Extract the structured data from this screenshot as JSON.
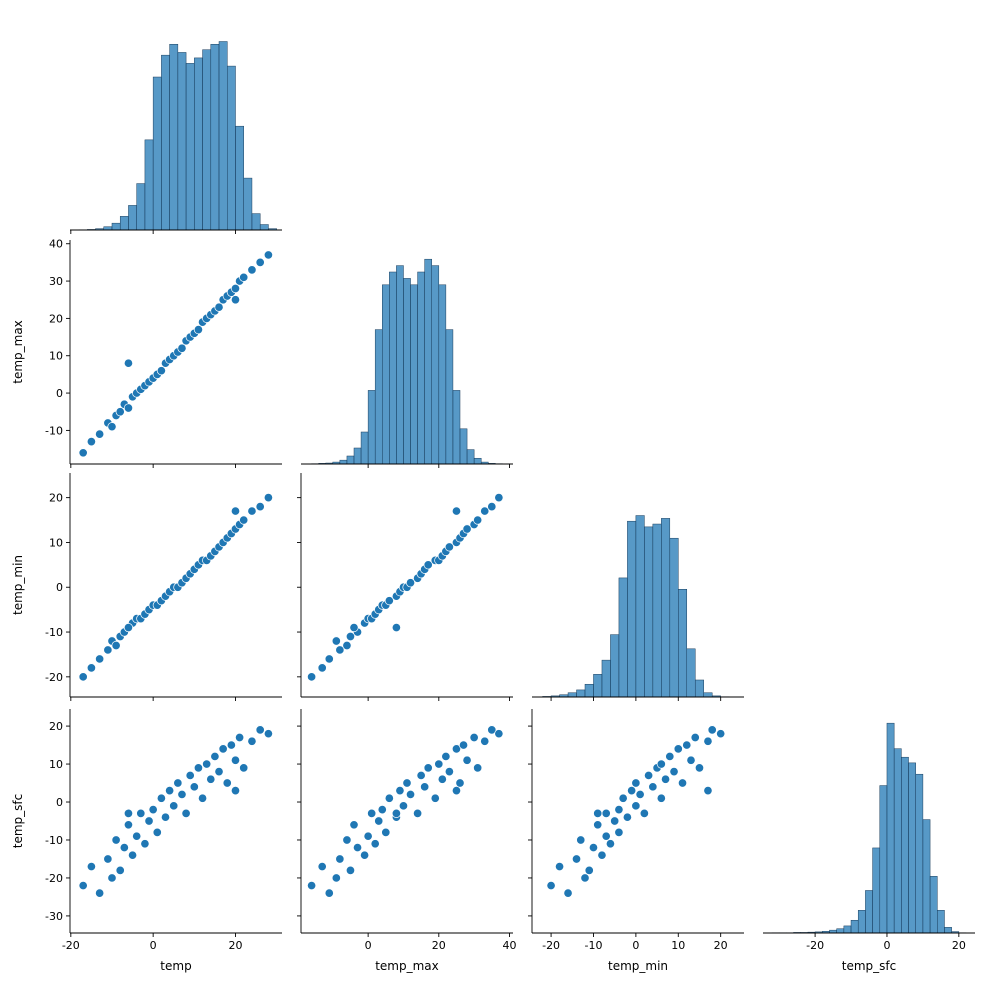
{
  "chart_data": [
    {
      "type": "histogram",
      "color": "#1f77b4",
      "bins": [
        -18,
        -16,
        -14,
        -12,
        -10,
        -8,
        -6,
        -4,
        -2,
        0,
        2,
        4,
        6,
        8,
        10,
        12,
        14,
        16,
        18,
        20,
        22,
        24,
        26,
        28,
        30
      ],
      "counts": [
        1,
        2,
        5,
        12,
        25,
        50,
        90,
        170,
        330,
        560,
        640,
        680,
        650,
        610,
        630,
        660,
        680,
        690,
        600,
        380,
        190,
        60,
        20,
        5
      ],
      "xlim": [
        -20.2,
        31.3
      ],
      "ylim": [
        0,
        820
      ],
      "xticks": [
        -20,
        0,
        20
      ]
    },
    {
      "type": "scatter",
      "color": "#1f77b4",
      "ylabel": "temp_max",
      "x": [
        -17,
        -15,
        -13,
        -11,
        -10,
        -9,
        -8,
        -7,
        -6,
        -5,
        -4,
        -3,
        -2,
        -1,
        0,
        1,
        2,
        3,
        4,
        5,
        6,
        7,
        8,
        9,
        10,
        11,
        12,
        13,
        14,
        15,
        16,
        17,
        18,
        19,
        20,
        21,
        22,
        24,
        26,
        28,
        -6,
        20
      ],
      "y": [
        -16,
        -13,
        -11,
        -8,
        -9,
        -6,
        -5,
        -3,
        -4,
        -1,
        0,
        1,
        2,
        3,
        4,
        5,
        6,
        8,
        9,
        10,
        11,
        12,
        14,
        15,
        16,
        17,
        19,
        20,
        21,
        22,
        23,
        25,
        26,
        27,
        28,
        30,
        31,
        33,
        35,
        37,
        8,
        25
      ],
      "xlim": [
        -20.2,
        31.3
      ],
      "ylim": [
        -19,
        41
      ],
      "xticks": [
        -20,
        0,
        20
      ],
      "yticks": [
        -10,
        0,
        10,
        20,
        30,
        40
      ]
    },
    {
      "type": "histogram",
      "color": "#1f77b4",
      "bins": [
        -16,
        -14,
        -12,
        -10,
        -8,
        -6,
        -4,
        -2,
        0,
        2,
        4,
        6,
        8,
        10,
        12,
        14,
        16,
        18,
        20,
        22,
        24,
        26,
        28,
        30,
        32,
        34,
        36,
        38
      ],
      "counts": [
        1,
        2,
        3,
        6,
        12,
        25,
        50,
        100,
        230,
        420,
        560,
        600,
        620,
        580,
        560,
        600,
        640,
        620,
        560,
        420,
        230,
        110,
        45,
        18,
        6,
        2,
        1
      ],
      "xlim": [
        -19,
        41
      ],
      "ylim": [
        0,
        700
      ],
      "xticks": [
        0,
        20,
        40
      ]
    },
    {
      "type": "scatter",
      "color": "#1f77b4",
      "ylabel": "temp_min",
      "x": [
        -17,
        -15,
        -13,
        -11,
        -10,
        -9,
        -8,
        -7,
        -6,
        -5,
        -4,
        -3,
        -2,
        -1,
        0,
        1,
        2,
        3,
        4,
        5,
        6,
        7,
        8,
        9,
        10,
        11,
        12,
        13,
        14,
        15,
        16,
        17,
        18,
        19,
        20,
        21,
        22,
        24,
        26,
        28,
        -6,
        20
      ],
      "y": [
        -20,
        -18,
        -16,
        -14,
        -12,
        -13,
        -11,
        -10,
        -9,
        -8,
        -7,
        -7,
        -6,
        -5,
        -4,
        -4,
        -3,
        -2,
        -1,
        0,
        0,
        1,
        2,
        3,
        4,
        5,
        6,
        6,
        7,
        8,
        9,
        10,
        11,
        12,
        13,
        14,
        15,
        17,
        18,
        20,
        -9,
        17
      ],
      "xlim": [
        -20.2,
        31.3
      ],
      "ylim": [
        -24.5,
        25.5
      ],
      "xticks": [
        -20,
        0,
        20
      ],
      "yticks": [
        -20,
        -10,
        0,
        10,
        20
      ]
    },
    {
      "type": "scatter",
      "color": "#1f77b4",
      "x": [
        -16,
        -13,
        -11,
        -8,
        -9,
        -6,
        -5,
        -3,
        -4,
        -1,
        0,
        1,
        2,
        3,
        4,
        5,
        6,
        8,
        9,
        10,
        11,
        12,
        14,
        15,
        16,
        17,
        19,
        20,
        21,
        22,
        23,
        25,
        26,
        27,
        28,
        30,
        31,
        33,
        35,
        37,
        8,
        25
      ],
      "y": [
        -20,
        -18,
        -16,
        -14,
        -12,
        -13,
        -11,
        -10,
        -9,
        -8,
        -7,
        -7,
        -6,
        -5,
        -4,
        -4,
        -3,
        -2,
        -1,
        0,
        0,
        1,
        2,
        3,
        4,
        5,
        6,
        6,
        7,
        8,
        9,
        10,
        11,
        12,
        13,
        14,
        15,
        17,
        18,
        20,
        -9,
        17
      ],
      "xlim": [
        -19,
        41
      ],
      "ylim": [
        -24.5,
        25.5
      ],
      "xticks": [
        0,
        20,
        40
      ],
      "yticks": [
        -20,
        -10,
        0,
        10,
        20
      ]
    },
    {
      "type": "histogram",
      "color": "#1f77b4",
      "bins": [
        -22,
        -20,
        -18,
        -16,
        -14,
        -12,
        -10,
        -8,
        -6,
        -4,
        -2,
        0,
        2,
        4,
        6,
        8,
        10,
        12,
        14,
        16,
        18,
        20,
        22
      ],
      "counts": [
        2,
        4,
        8,
        15,
        25,
        45,
        80,
        130,
        220,
        420,
        620,
        640,
        600,
        610,
        630,
        560,
        380,
        170,
        60,
        15,
        4,
        1
      ],
      "xlim": [
        -24.5,
        25.5
      ],
      "ylim": [
        0,
        790
      ],
      "xticks": [
        -20,
        -10,
        0,
        10,
        20
      ]
    },
    {
      "type": "scatter",
      "color": "#1f77b4",
      "xlabel": "temp",
      "ylabel": "temp_sfc",
      "x": [
        -17,
        -15,
        -13,
        -11,
        -10,
        -9,
        -8,
        -7,
        -6,
        -5,
        -4,
        -3,
        -2,
        -1,
        0,
        1,
        2,
        3,
        4,
        5,
        6,
        7,
        8,
        9,
        10,
        11,
        12,
        13,
        14,
        15,
        16,
        17,
        18,
        19,
        20,
        21,
        22,
        24,
        26,
        28,
        -6,
        20
      ],
      "y": [
        -22,
        -17,
        -24,
        -15,
        -20,
        -10,
        -18,
        -12,
        -6,
        -14,
        -9,
        -3,
        -11,
        -5,
        -2,
        -8,
        1,
        -4,
        3,
        -1,
        5,
        2,
        -3,
        7,
        4,
        9,
        1,
        10,
        6,
        12,
        8,
        14,
        5,
        15,
        11,
        17,
        9,
        16,
        19,
        18,
        -3,
        3
      ],
      "xlim": [
        -20.2,
        31.3
      ],
      "ylim": [
        -34.5,
        24.5
      ],
      "xticks": [
        -20,
        0,
        20
      ],
      "yticks": [
        -30,
        -20,
        -10,
        0,
        10,
        20
      ]
    },
    {
      "type": "scatter",
      "color": "#1f77b4",
      "xlabel": "temp_max",
      "x": [
        -16,
        -13,
        -11,
        -8,
        -9,
        -6,
        -5,
        -3,
        -4,
        -1,
        0,
        1,
        2,
        3,
        4,
        5,
        6,
        8,
        9,
        10,
        11,
        12,
        14,
        15,
        16,
        17,
        19,
        20,
        21,
        22,
        23,
        25,
        26,
        27,
        28,
        30,
        31,
        33,
        35,
        37,
        8,
        25
      ],
      "y": [
        -22,
        -17,
        -24,
        -15,
        -20,
        -10,
        -18,
        -12,
        -6,
        -14,
        -9,
        -3,
        -11,
        -5,
        -2,
        -8,
        1,
        -4,
        3,
        -1,
        5,
        2,
        -3,
        7,
        4,
        9,
        1,
        10,
        6,
        12,
        8,
        14,
        5,
        15,
        11,
        17,
        9,
        16,
        19,
        18,
        -3,
        3
      ],
      "xlim": [
        -19,
        41
      ],
      "ylim": [
        -34.5,
        24.5
      ],
      "xticks": [
        0,
        20,
        40
      ],
      "yticks": [
        -30,
        -20,
        -10,
        0,
        10,
        20
      ]
    },
    {
      "type": "scatter",
      "color": "#1f77b4",
      "xlabel": "temp_min",
      "x": [
        -20,
        -18,
        -16,
        -14,
        -12,
        -13,
        -11,
        -10,
        -9,
        -8,
        -7,
        -7,
        -6,
        -5,
        -4,
        -4,
        -3,
        -2,
        -1,
        0,
        0,
        1,
        2,
        3,
        4,
        5,
        6,
        6,
        7,
        8,
        9,
        10,
        11,
        12,
        13,
        14,
        15,
        17,
        18,
        20,
        -9,
        17
      ],
      "y": [
        -22,
        -17,
        -24,
        -15,
        -20,
        -10,
        -18,
        -12,
        -6,
        -14,
        -9,
        -3,
        -11,
        -5,
        -2,
        -8,
        1,
        -4,
        3,
        -1,
        5,
        2,
        -3,
        7,
        4,
        9,
        1,
        10,
        6,
        12,
        8,
        14,
        5,
        15,
        11,
        17,
        9,
        16,
        19,
        18,
        -3,
        3
      ],
      "xlim": [
        -24.5,
        25.5
      ],
      "ylim": [
        -34.5,
        24.5
      ],
      "xticks": [
        -20,
        -10,
        0,
        10,
        20
      ],
      "yticks": [
        -30,
        -20,
        -10,
        0,
        10,
        20
      ]
    },
    {
      "type": "histogram",
      "color": "#1f77b4",
      "xlabel": "temp_sfc",
      "bins": [
        -32,
        -30,
        -28,
        -26,
        -24,
        -22,
        -20,
        -18,
        -16,
        -14,
        -12,
        -10,
        -8,
        -6,
        -4,
        -2,
        0,
        2,
        4,
        6,
        8,
        10,
        12,
        14,
        16,
        18,
        20,
        22
      ],
      "counts": [
        1,
        1,
        1,
        2,
        2,
        3,
        4,
        6,
        10,
        15,
        25,
        45,
        80,
        150,
        300,
        520,
        740,
        650,
        620,
        600,
        560,
        400,
        200,
        80,
        20,
        5,
        1
      ],
      "xlim": [
        -34.5,
        24.5
      ],
      "ylim": [
        0,
        790
      ],
      "xticks": [
        -20,
        0,
        20
      ]
    }
  ]
}
